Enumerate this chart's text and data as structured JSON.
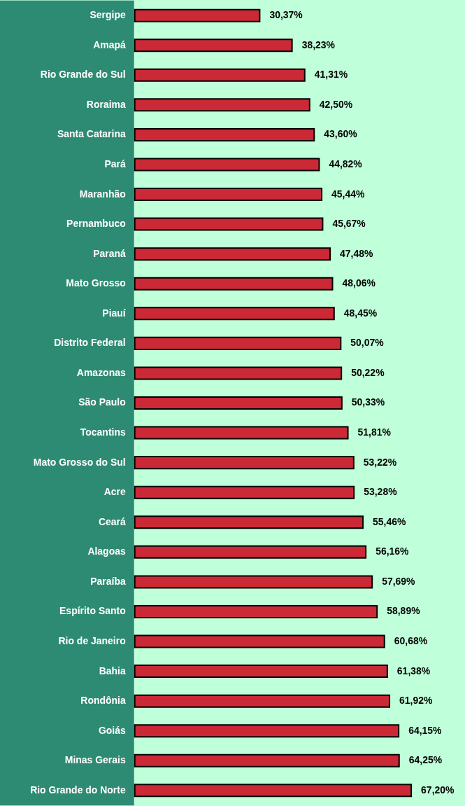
{
  "chart_data": {
    "type": "bar",
    "orientation": "horizontal",
    "categories": [
      "Sergipe",
      "Amapá",
      "Rio Grande do Sul",
      "Roraima",
      "Santa Catarina",
      "Pará",
      "Maranhão",
      "Pernambuco",
      "Paraná",
      "Mato Grosso",
      "Piauí",
      "Distrito Federal",
      "Amazonas",
      "São Paulo",
      "Tocantins",
      "Mato Grosso do Sul",
      "Acre",
      "Ceará",
      "Alagoas",
      "Paraíba",
      "Espírito Santo",
      "Rio de Janeiro",
      "Bahia",
      "Rondônia",
      "Goiás",
      "Minas Gerais",
      "Rio Grande do Norte"
    ],
    "values": [
      30.37,
      38.23,
      41.31,
      42.5,
      43.6,
      44.82,
      45.44,
      45.67,
      47.48,
      48.06,
      48.45,
      50.07,
      50.22,
      50.33,
      51.81,
      53.22,
      53.28,
      55.46,
      56.16,
      57.69,
      58.89,
      60.68,
      61.38,
      61.92,
      64.15,
      64.25,
      67.2
    ],
    "value_labels": [
      "30,37%",
      "38,23%",
      "41,31%",
      "42,50%",
      "43,60%",
      "44,82%",
      "45,44%",
      "45,67%",
      "47,48%",
      "48,06%",
      "48,45%",
      "50,07%",
      "50,22%",
      "50,33%",
      "51,81%",
      "53,22%",
      "53,28%",
      "55,46%",
      "56,16%",
      "57,69%",
      "58,89%",
      "60,68%",
      "61,38%",
      "61,92%",
      "64,15%",
      "64,25%",
      "67,20%"
    ],
    "color": "#cc2936"
  }
}
